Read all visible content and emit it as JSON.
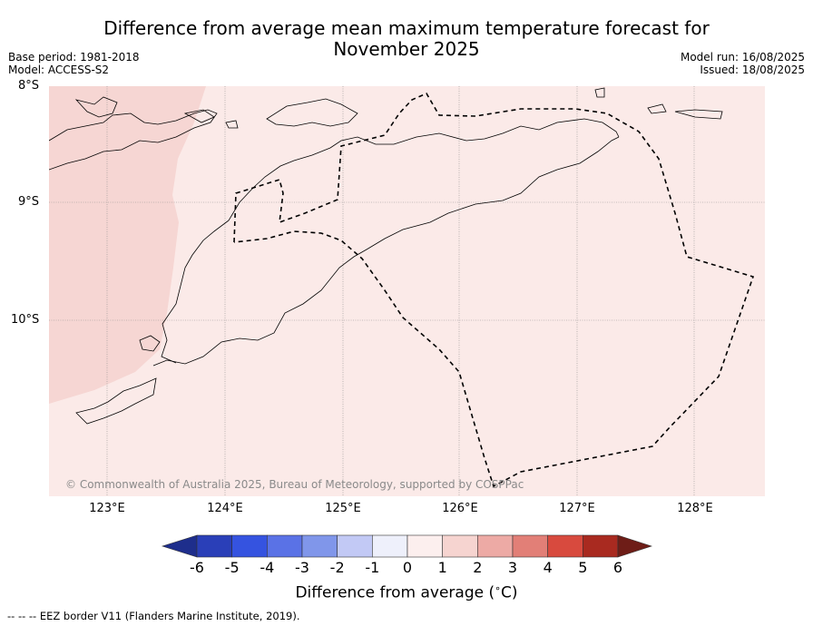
{
  "title_line1": "Difference from average mean maximum temperature forecast for",
  "title_line2": "November 2025",
  "base_period": "Base period: 1981-2018",
  "model": "Model: ACCESS-S2",
  "model_run": "Model run: 16/08/2025",
  "issued": "Issued: 18/08/2025",
  "lat_labels": [
    "8°S",
    "9°S",
    "10°S"
  ],
  "lon_labels": [
    "123°E",
    "124°E",
    "125°E",
    "126°E",
    "127°E",
    "128°E"
  ],
  "copyright": "© Commonwealth of Australia 2025, Bureau of Meteorology, supported by COSPPac",
  "colorbar": {
    "ticks": [
      "-6",
      "-5",
      "-4",
      "-3",
      "-2",
      "-1",
      "0",
      "1",
      "2",
      "3",
      "4",
      "5",
      "6"
    ],
    "colors": [
      "#1e2e8c",
      "#2a3fb8",
      "#3553e0",
      "#5a72e6",
      "#8096ea",
      "#c2c9f5",
      "#eef0fb",
      "#fcefee",
      "#f6d4d0",
      "#edaaa5",
      "#e27f77",
      "#d84a3e",
      "#a92a20",
      "#6e1d17"
    ],
    "label": "Difference from average ($^\\circ$C)",
    "label_text": "Difference from average (",
    "label_unit": "C)"
  },
  "map_fill_colors": {
    "ocean_1_to_2": "#fbeae8",
    "west_2_to_3": "#f6d6d3"
  },
  "footer": "--  --  -- EEZ border V11 (Flanders Marine Institute, 2019)."
}
